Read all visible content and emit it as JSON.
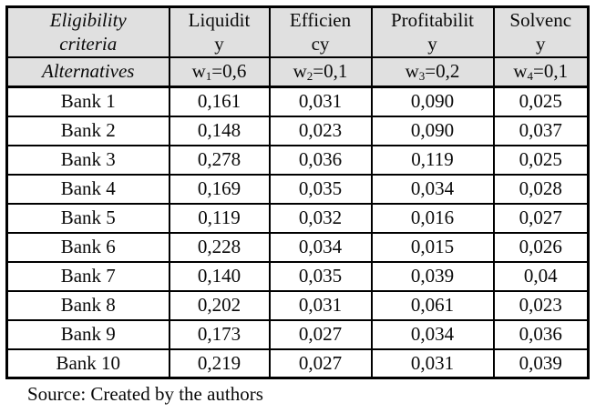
{
  "table": {
    "corner": {
      "criteria_label": "Eligibility\ncriteria",
      "alternatives_label": "Alternatives"
    },
    "criteria": [
      {
        "label": "Liquidit\ny",
        "weight_base": "w",
        "weight_sub": "1",
        "weight_value": "=0,6"
      },
      {
        "label": "Efficien\ncy",
        "weight_base": "w",
        "weight_sub": "2",
        "weight_value": "=0,1"
      },
      {
        "label": "Profitabilit\ny",
        "weight_base": "w",
        "weight_sub": "3",
        "weight_value": "=0,2"
      },
      {
        "label": "Solvenc\ny",
        "weight_base": "w",
        "weight_sub": "4",
        "weight_value": "=0,1"
      }
    ],
    "rows": [
      {
        "name": "Bank 1",
        "values": [
          "0,161",
          "0,031",
          "0,090",
          "0,025"
        ]
      },
      {
        "name": "Bank 2",
        "values": [
          "0,148",
          "0,023",
          "0,090",
          "0,037"
        ]
      },
      {
        "name": "Bank 3",
        "values": [
          "0,278",
          "0,036",
          "0,119",
          "0,025"
        ]
      },
      {
        "name": "Bank 4",
        "values": [
          "0,169",
          "0,035",
          "0,034",
          "0,028"
        ]
      },
      {
        "name": "Bank 5",
        "values": [
          "0,119",
          "0,032",
          "0,016",
          "0,027"
        ]
      },
      {
        "name": "Bank 6",
        "values": [
          "0,228",
          "0,034",
          "0,015",
          "0,026"
        ]
      },
      {
        "name": "Bank 7",
        "values": [
          "0,140",
          "0,035",
          "0,039",
          "0,04"
        ]
      },
      {
        "name": "Bank 8",
        "values": [
          "0,202",
          "0,031",
          "0,061",
          "0,023"
        ]
      },
      {
        "name": "Bank 9",
        "values": [
          "0,173",
          "0,027",
          "0,034",
          "0,036"
        ]
      },
      {
        "name": "Bank 10",
        "values": [
          "0,219",
          "0,027",
          "0,031",
          "0,039"
        ]
      }
    ]
  },
  "footer": {
    "source_note": "Source: Created by the authors"
  },
  "colors": {
    "header_bg": "#e0e0e0",
    "border": "#000000",
    "page_bg": "#ffffff",
    "text": "#0a0a0a"
  }
}
